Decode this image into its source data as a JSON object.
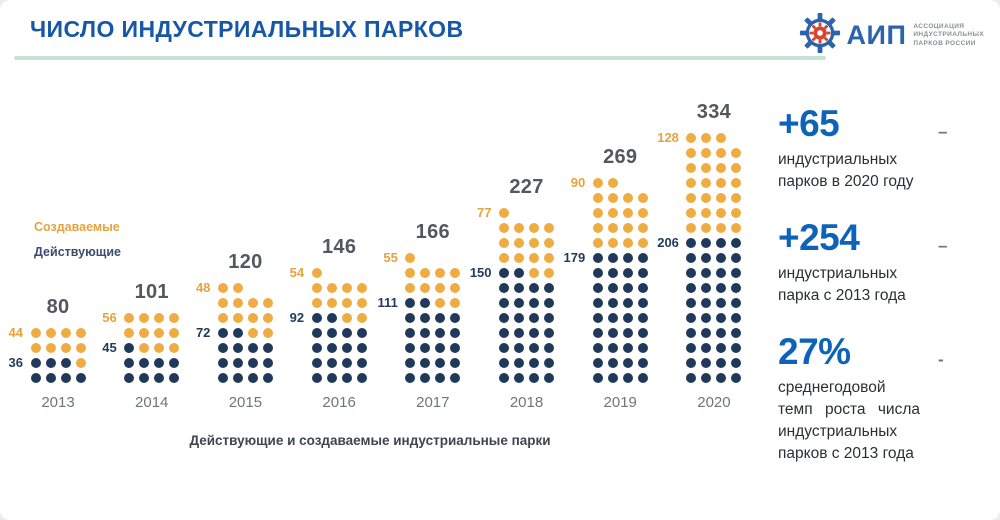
{
  "header": {
    "title": "ЧИСЛО ИНДУСТРИАЛЬНЫХ ПАРКОВ"
  },
  "logo": {
    "abbr": "АИП",
    "line1": "АССОЦИАЦИЯ",
    "line2": "ИНДУСТРИАЛЬНЫХ",
    "line3": "ПАРКОВ РОССИИ"
  },
  "legend": {
    "created": "Создаваемые",
    "operating": "Действующие"
  },
  "caption": "Действующие и создаваемые индустриальные парки",
  "stats": [
    {
      "value": "+65",
      "dash": "–",
      "desc": "индустриальных парков в 2020 году"
    },
    {
      "value": "+254",
      "dash": "–",
      "desc": "индустриальных парка с 2013 года"
    },
    {
      "value": "27%",
      "dash": "-",
      "desc": "среднегодовой темп роста числа индустриальных парков с 2013 года"
    }
  ],
  "colors": {
    "title_blue": "#1757A8",
    "stat_blue": "#0D63B9",
    "created_orange": "#EFAC43",
    "operating_navy": "#20395B",
    "total_gray": "#54585E",
    "divider_teal": "#c8e2d6",
    "logo_blue": "#2B63AD",
    "logo_red": "#D6452F"
  },
  "chart_data": {
    "type": "bar",
    "subtype": "dot-matrix",
    "title": "ЧИСЛО ИНДУСТРИАЛЬНЫХ ПАРКОВ",
    "xlabel": "",
    "ylabel": "",
    "unit_per_dot": 5,
    "grid": false,
    "legend_position": "left",
    "categories": [
      "2013",
      "2014",
      "2015",
      "2016",
      "2017",
      "2018",
      "2019",
      "2020"
    ],
    "series": [
      {
        "name": "Создаваемые",
        "color": "#EFAC43",
        "values": [
          44,
          56,
          48,
          54,
          55,
          77,
          90,
          128
        ]
      },
      {
        "name": "Действующие",
        "color": "#20395B",
        "values": [
          36,
          45,
          72,
          92,
          111,
          150,
          179,
          206
        ]
      }
    ],
    "totals": [
      80,
      101,
      120,
      146,
      166,
      227,
      269,
      334
    ],
    "years": [
      {
        "year": "2013",
        "total": 80,
        "created": 44,
        "operating": 36,
        "rows": [
          "OOOO",
          "OOOO",
          "NNNO",
          "NNNN"
        ]
      },
      {
        "year": "2014",
        "total": 101,
        "created": 56,
        "operating": 45,
        "rows": [
          "OOOO",
          "OOOO",
          "NOOO",
          "NNNN",
          "NNNN"
        ]
      },
      {
        "year": "2015",
        "total": 120,
        "created": 48,
        "operating": 72,
        "rows": [
          "OO",
          "OOOO",
          "OOOO",
          "NNOO",
          "NNNN",
          "NNNN",
          "NNNN"
        ]
      },
      {
        "year": "2016",
        "total": 146,
        "created": 54,
        "operating": 92,
        "rows": [
          "O",
          "OOOO",
          "OOOO",
          "NNOO",
          "NNNN",
          "NNNN",
          "NNNN",
          "NNNN"
        ]
      },
      {
        "year": "2017",
        "total": 166,
        "created": 55,
        "operating": 111,
        "rows": [
          "O",
          "OOOO",
          "OOOO",
          "NNOO",
          "NNNN",
          "NNNN",
          "NNNN",
          "NNNN",
          "NNNN"
        ]
      },
      {
        "year": "2018",
        "total": 227,
        "created": 77,
        "operating": 150,
        "rows": [
          "O",
          "OOOO",
          "OOOO",
          "OOOO",
          "NNOO",
          "NNNN",
          "NNNN",
          "NNNN",
          "NNNN",
          "NNNN",
          "NNNN",
          "NNNN"
        ]
      },
      {
        "year": "2019",
        "total": 269,
        "created": 90,
        "operating": 179,
        "rows": [
          "OO",
          "OOOO",
          "OOOO",
          "OOOO",
          "OOOO",
          "NNNN",
          "NNNN",
          "NNNN",
          "NNNN",
          "NNNN",
          "NNNN",
          "NNNN",
          "NNNN",
          "NNNN"
        ]
      },
      {
        "year": "2020",
        "total": 334,
        "created": 128,
        "operating": 206,
        "rows": [
          "OOO",
          "OOOO",
          "OOOO",
          "OOOO",
          "OOOO",
          "OOOO",
          "OOOO",
          "NNNN",
          "NNNN",
          "NNNN",
          "NNNN",
          "NNNN",
          "NNNN",
          "NNNN",
          "NNNN",
          "NNNN",
          "NNNN"
        ]
      }
    ]
  }
}
